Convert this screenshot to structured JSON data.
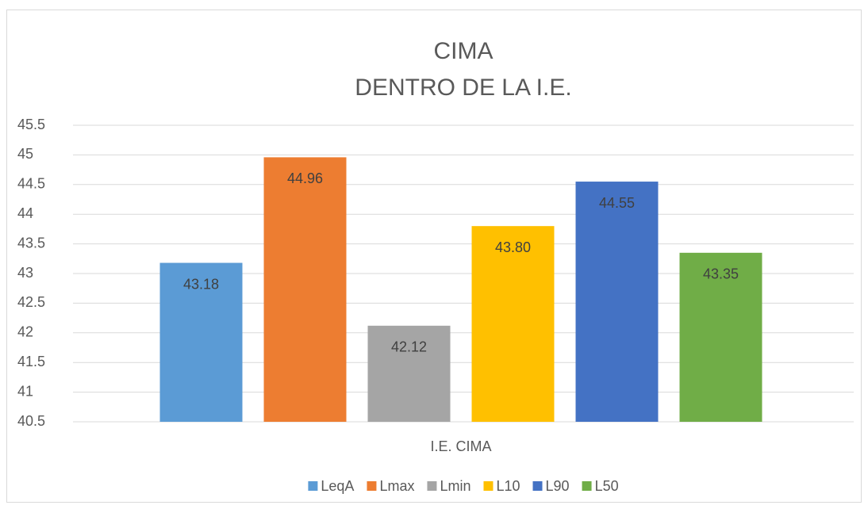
{
  "chart_data": {
    "type": "bar",
    "title": [
      "CIMA",
      "DENTRO DE LA I.E."
    ],
    "categories": [
      "I.E. CIMA"
    ],
    "series": [
      {
        "name": "LeqA",
        "color": "#5b9bd5",
        "values": [
          43.18
        ],
        "value_labels": [
          "43.18"
        ]
      },
      {
        "name": "Lmax",
        "color": "#ed7d31",
        "values": [
          44.96
        ],
        "value_labels": [
          "44.96"
        ]
      },
      {
        "name": "Lmin",
        "color": "#a5a5a5",
        "values": [
          42.12
        ],
        "value_labels": [
          "42.12"
        ]
      },
      {
        "name": "L10",
        "color": "#ffc000",
        "values": [
          43.8
        ],
        "value_labels": [
          "43.80"
        ]
      },
      {
        "name": "L90",
        "color": "#4472c4",
        "values": [
          44.55
        ],
        "value_labels": [
          "44.55"
        ]
      },
      {
        "name": "L50",
        "color": "#70ad47",
        "values": [
          43.35
        ],
        "value_labels": [
          "43.35"
        ]
      }
    ],
    "ylim": [
      40.5,
      45.5
    ],
    "yticks": [
      40.5,
      41,
      41.5,
      42,
      42.5,
      43,
      43.5,
      44,
      44.5,
      45,
      45.5
    ],
    "grid": true,
    "legend": "bottom"
  }
}
